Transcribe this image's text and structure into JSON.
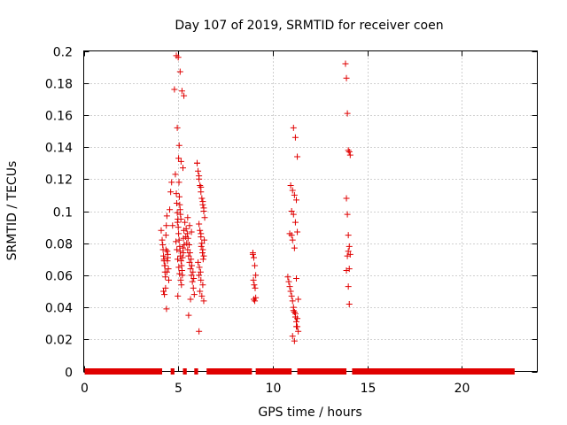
{
  "chart_data": {
    "type": "scatter",
    "title": "Day 107 of 2019, SRMTID for receiver coen",
    "xlabel": "GPS time / hours",
    "ylabel": "SRMTID / TECUs",
    "xlim": [
      0,
      24
    ],
    "ylim": [
      0,
      0.2
    ],
    "xticks": [
      0,
      5,
      10,
      15,
      20
    ],
    "xtick_labels": [
      "0",
      "5",
      "10",
      "15",
      "20"
    ],
    "yticks": [
      0,
      0.02,
      0.04,
      0.06,
      0.08,
      0.1,
      0.12,
      0.14,
      0.16,
      0.18,
      0.2
    ],
    "ytick_labels": [
      "0",
      "0.02",
      "0.04",
      "0.06",
      "0.08",
      "0.1",
      "0.12",
      "0.14",
      "0.16",
      "0.18",
      "0.2"
    ],
    "grid": true,
    "marker": "+",
    "color": "#e00000",
    "baseline_ranges": [
      [
        0.05,
        4.15
      ],
      [
        4.6,
        4.8
      ],
      [
        5.25,
        5.45
      ],
      [
        5.85,
        6.05
      ],
      [
        6.5,
        8.9
      ],
      [
        9.1,
        11.0
      ],
      [
        11.3,
        13.9
      ],
      [
        14.2,
        22.8
      ]
    ],
    "series": [
      {
        "name": "SRMTID",
        "x": [
          4.1,
          4.15,
          4.18,
          4.2,
          4.22,
          4.25,
          4.28,
          4.3,
          4.32,
          4.35,
          4.37,
          4.4,
          4.42,
          4.45,
          4.48,
          4.5,
          4.55,
          4.6,
          4.65,
          4.7,
          4.22,
          4.27,
          4.33,
          4.38,
          4.43,
          4.25,
          4.35,
          4.45,
          4.3,
          4.4,
          4.8,
          4.85,
          4.9,
          4.92,
          4.95,
          4.98,
          5.0,
          5.02,
          5.05,
          5.08,
          5.1,
          5.12,
          5.15,
          5.18,
          5.2,
          5.22,
          5.25,
          5.28,
          5.3,
          5.35,
          4.88,
          4.93,
          4.97,
          5.03,
          5.07,
          5.13,
          5.17,
          5.23,
          5.27,
          5.32,
          4.9,
          5.0,
          5.1,
          5.2,
          5.3,
          4.95,
          5.05,
          5.15,
          5.25,
          5.02,
          5.04,
          5.06,
          5.08,
          5.1,
          5.12,
          5.14,
          4.96,
          4.98,
          5.4,
          5.45,
          5.5,
          5.55,
          5.6,
          5.65,
          5.7,
          5.75,
          5.8,
          5.85,
          5.42,
          5.48,
          5.52,
          5.58,
          5.62,
          5.68,
          5.72,
          5.78,
          5.82,
          5.5,
          5.6,
          5.7,
          5.55,
          5.65,
          6.0,
          6.05,
          6.1,
          6.15,
          6.2,
          6.25,
          6.3,
          6.35,
          6.4,
          6.1,
          6.15,
          6.2,
          6.25,
          6.3,
          6.35,
          6.05,
          6.12,
          6.18,
          6.22,
          6.28,
          6.32,
          6.38,
          6.1,
          6.2,
          6.3,
          6.15,
          6.25,
          6.35,
          6.0,
          6.1,
          6.2,
          6.3,
          6.35,
          6.1,
          6.2,
          8.95,
          9.0,
          9.05,
          9.1,
          8.98,
          9.02,
          9.07,
          9.0,
          9.05,
          8.95,
          9.1,
          10.8,
          10.85,
          10.9,
          10.95,
          11.0,
          11.05,
          11.1,
          11.15,
          11.2,
          11.25,
          11.3,
          11.35,
          10.9,
          11.0,
          11.1,
          11.2,
          11.3,
          10.95,
          11.05,
          11.15,
          11.25,
          11.0,
          11.1,
          11.2,
          11.3,
          11.05,
          11.15,
          11.25,
          11.35,
          11.1,
          11.2,
          11.3,
          11.05,
          11.15,
          11.25,
          13.85,
          13.9,
          13.95,
          14.0,
          14.05,
          14.1,
          13.9,
          13.95,
          14.0,
          14.05,
          14.0,
          13.95,
          14.1,
          14.05,
          13.9,
          14.0,
          14.05
        ],
        "y": [
          0.088,
          0.082,
          0.079,
          0.076,
          0.072,
          0.069,
          0.066,
          0.062,
          0.059,
          0.085,
          0.091,
          0.097,
          0.075,
          0.071,
          0.064,
          0.057,
          0.101,
          0.112,
          0.118,
          0.091,
          0.05,
          0.048,
          0.052,
          0.039,
          0.069,
          0.07,
          0.076,
          0.073,
          0.066,
          0.062,
          0.176,
          0.123,
          0.111,
          0.105,
          0.099,
          0.095,
          0.09,
          0.086,
          0.082,
          0.078,
          0.075,
          0.072,
          0.069,
          0.066,
          0.063,
          0.06,
          0.077,
          0.083,
          0.088,
          0.093,
          0.081,
          0.076,
          0.07,
          0.065,
          0.061,
          0.057,
          0.054,
          0.071,
          0.074,
          0.079,
          0.197,
          0.196,
          0.187,
          0.175,
          0.172,
          0.152,
          0.141,
          0.131,
          0.127,
          0.133,
          0.118,
          0.109,
          0.104,
          0.101,
          0.098,
          0.095,
          0.093,
          0.047,
          0.084,
          0.08,
          0.076,
          0.072,
          0.068,
          0.064,
          0.06,
          0.056,
          0.052,
          0.048,
          0.089,
          0.086,
          0.083,
          0.079,
          0.074,
          0.07,
          0.066,
          0.062,
          0.058,
          0.096,
          0.091,
          0.087,
          0.035,
          0.045,
          0.13,
          0.125,
          0.12,
          0.116,
          0.112,
          0.108,
          0.104,
          0.1,
          0.096,
          0.092,
          0.088,
          0.084,
          0.08,
          0.076,
          0.072,
          0.068,
          0.065,
          0.062,
          0.078,
          0.074,
          0.07,
          0.082,
          0.06,
          0.057,
          0.054,
          0.05,
          0.047,
          0.044,
          0.13,
          0.122,
          0.115,
          0.106,
          0.102,
          0.025,
          0.086,
          0.073,
          0.071,
          0.066,
          0.06,
          0.057,
          0.054,
          0.052,
          0.045,
          0.044,
          0.074,
          0.046,
          0.059,
          0.056,
          0.053,
          0.05,
          0.047,
          0.044,
          0.04,
          0.037,
          0.034,
          0.031,
          0.028,
          0.025,
          0.086,
          0.085,
          0.152,
          0.146,
          0.134,
          0.116,
          0.113,
          0.11,
          0.107,
          0.1,
          0.098,
          0.093,
          0.087,
          0.082,
          0.077,
          0.058,
          0.045,
          0.038,
          0.036,
          0.033,
          0.022,
          0.019,
          0.028,
          0.192,
          0.183,
          0.161,
          0.138,
          0.137,
          0.135,
          0.108,
          0.098,
          0.085,
          0.078,
          0.075,
          0.072,
          0.073,
          0.064,
          0.063,
          0.053,
          0.042
        ]
      }
    ]
  }
}
